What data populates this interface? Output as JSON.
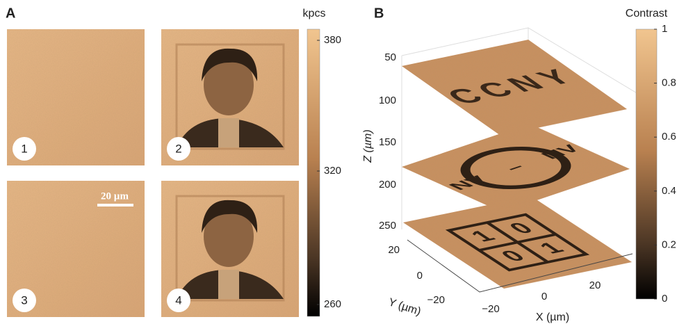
{
  "panel_a": {
    "label": "A",
    "images": [
      {
        "number": "1"
      },
      {
        "number": "2"
      },
      {
        "number": "3"
      },
      {
        "number": "4"
      }
    ],
    "scale_bar": "20 µm",
    "colorbar": {
      "title": "kpcs",
      "ticks": [
        "380",
        "320",
        "260"
      ]
    }
  },
  "panel_b": {
    "label": "B",
    "planes": {
      "top": "CCNY",
      "middle": [
        "NV",
        "–",
        "NV"
      ],
      "bottom": [
        "1",
        "0",
        "0",
        "1"
      ]
    },
    "z_axis": {
      "title": "Z (µm)",
      "ticks": [
        "50",
        "100",
        "150",
        "200",
        "250"
      ]
    },
    "y_axis": {
      "title": "Y (µm)",
      "ticks": [
        "20",
        "0",
        "−20"
      ]
    },
    "x_axis": {
      "title": "X (µm)",
      "ticks": [
        "−20",
        "0",
        "20"
      ]
    },
    "colorbar": {
      "title": "Contrast",
      "ticks": [
        "1",
        "0.8",
        "0.6",
        "0.4",
        "0.2",
        "0"
      ]
    }
  }
}
